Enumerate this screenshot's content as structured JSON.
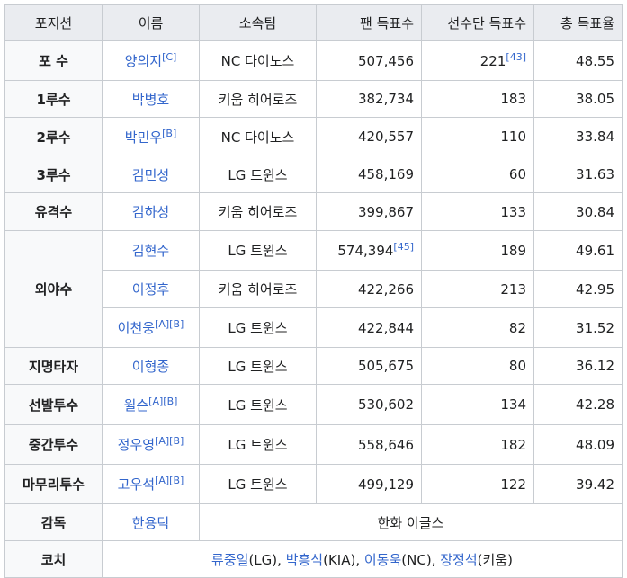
{
  "headers": [
    "포지션",
    "이름",
    "소속팀",
    "팬 득표수",
    "선수단 득표수",
    "총 득표율"
  ],
  "rows": [
    {
      "position": "포 수",
      "name": "양의지",
      "sup": "[C]",
      "team": "NC 다이노스",
      "fan_votes": "507,456",
      "fan_sup": "",
      "player_votes": "221",
      "player_sup": "[43]",
      "total": "48.55"
    },
    {
      "position": "1루수",
      "name": "박병호",
      "sup": "",
      "team": "키움 히어로즈",
      "fan_votes": "382,734",
      "fan_sup": "",
      "player_votes": "183",
      "player_sup": "",
      "total": "38.05"
    },
    {
      "position": "2루수",
      "name": "박민우",
      "sup": "[B]",
      "team": "NC 다이노스",
      "fan_votes": "420,557",
      "fan_sup": "",
      "player_votes": "110",
      "player_sup": "",
      "total": "33.84"
    },
    {
      "position": "3루수",
      "name": "김민성",
      "sup": "",
      "team": "LG 트윈스",
      "fan_votes": "458,169",
      "fan_sup": "",
      "player_votes": "60",
      "player_sup": "",
      "total": "31.63"
    },
    {
      "position": "유격수",
      "name": "김하성",
      "sup": "",
      "team": "키움 히어로즈",
      "fan_votes": "399,867",
      "fan_sup": "",
      "player_votes": "133",
      "player_sup": "",
      "total": "30.84"
    },
    {
      "position": "외야수",
      "name": "김현수",
      "sup": "",
      "team": "LG 트윈스",
      "fan_votes": "574,394",
      "fan_sup": "[45]",
      "player_votes": "189",
      "player_sup": "",
      "total": "49.61"
    },
    {
      "position": "",
      "name": "이정후",
      "sup": "",
      "team": "키움 히어로즈",
      "fan_votes": "422,266",
      "fan_sup": "",
      "player_votes": "213",
      "player_sup": "",
      "total": "42.95"
    },
    {
      "position": "",
      "name": "이천웅",
      "sup": "[A][B]",
      "team": "LG 트윈스",
      "fan_votes": "422,844",
      "fan_sup": "",
      "player_votes": "82",
      "player_sup": "",
      "total": "31.52"
    },
    {
      "position": "지명타자",
      "name": "이형종",
      "sup": "",
      "team": "LG 트윈스",
      "fan_votes": "505,675",
      "fan_sup": "",
      "player_votes": "80",
      "player_sup": "",
      "total": "36.12"
    },
    {
      "position": "선발투수",
      "name": "윌슨",
      "sup": "[A][B]",
      "team": "LG 트윈스",
      "fan_votes": "530,602",
      "fan_sup": "",
      "player_votes": "134",
      "player_sup": "",
      "total": "42.28"
    },
    {
      "position": "중간투수",
      "name": "정우영",
      "sup": "[A][B]",
      "team": "LG 트윈스",
      "fan_votes": "558,646",
      "fan_sup": "",
      "player_votes": "182",
      "player_sup": "",
      "total": "48.09"
    },
    {
      "position": "마무리투수",
      "name": "고우석",
      "sup": "[A][B]",
      "team": "LG 트윈스",
      "fan_votes": "499,129",
      "fan_sup": "",
      "player_votes": "122",
      "player_sup": "",
      "total": "39.42"
    }
  ],
  "manager": {
    "label": "감독",
    "name": "한용덕",
    "team": "한화 이글스"
  },
  "coach": {
    "label": "코치",
    "coaches": [
      {
        "name": "류중일",
        "team": "(LG)"
      },
      {
        "name": "박흥식",
        "team": "(KIA)"
      },
      {
        "name": "이동욱",
        "team": "(NC)"
      },
      {
        "name": "장정석",
        "team": "(키움)"
      }
    ],
    "separator": ", "
  }
}
